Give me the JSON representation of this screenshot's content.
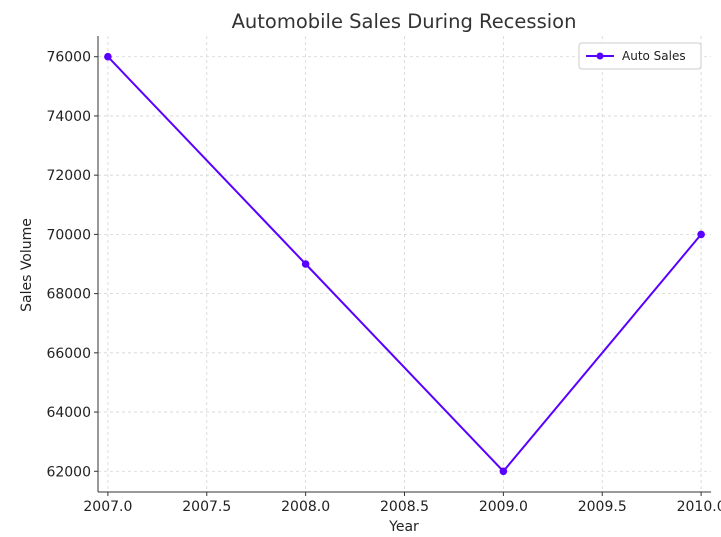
{
  "chart_data": {
    "type": "line",
    "title": "Automobile Sales During Recession",
    "xlabel": "Year",
    "ylabel": "Sales Volume",
    "x": [
      2007,
      2008,
      2009,
      2010
    ],
    "series": [
      {
        "name": "Auto Sales",
        "values": [
          76000,
          69000,
          62000,
          70000
        ],
        "color": "#5a00ff"
      }
    ],
    "xlim": [
      2006.95,
      2010.05
    ],
    "ylim": [
      61300,
      76700
    ],
    "xticks": [
      2007.0,
      2007.5,
      2008.0,
      2008.5,
      2009.0,
      2009.5,
      2010.0
    ],
    "xtick_labels": [
      "2007.0",
      "2007.5",
      "2008.0",
      "2008.5",
      "2009.0",
      "2009.5",
      "2010.0"
    ],
    "yticks": [
      62000,
      64000,
      66000,
      68000,
      70000,
      72000,
      74000,
      76000
    ],
    "ytick_labels": [
      "62000",
      "64000",
      "66000",
      "68000",
      "70000",
      "72000",
      "74000",
      "76000"
    ],
    "grid": true,
    "legend_position": "top-right",
    "marker": "circle"
  }
}
